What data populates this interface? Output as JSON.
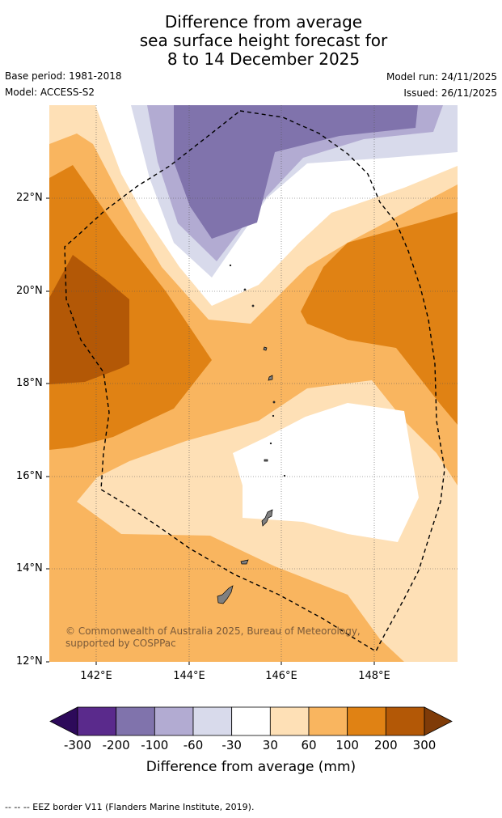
{
  "title": {
    "line1": "Difference from average",
    "line2": "sea surface height forecast for",
    "line3": "8 to 14 December 2025"
  },
  "info": {
    "base_period": "Base period: 1981-2018",
    "model": "Model: ACCESS-S2",
    "model_run": "Model run: 24/11/2025",
    "issued": "Issued: 26/11/2025"
  },
  "axes": {
    "lat_labels": [
      "22°N",
      "20°N",
      "18°N",
      "16°N",
      "14°N",
      "12°N"
    ],
    "lon_labels": [
      "142°E",
      "144°E",
      "146°E",
      "148°E"
    ]
  },
  "copyright": "© Commonwealth of Australia 2025, Bureau of Meteorology, supported by COSPPac",
  "colorbar": {
    "ticks": [
      "-300",
      "-200",
      "-100",
      "-60",
      "-30",
      "30",
      "60",
      "100",
      "200",
      "300"
    ],
    "colors": [
      "#2d0a5a",
      "#5a2a8c",
      "#8073ac",
      "#b2abd2",
      "#d8daeb",
      "#ffffff",
      "#fee0b6",
      "#f9b55f",
      "#e08214",
      "#b35806",
      "#7f3b08"
    ],
    "title": "Difference from average (mm)"
  },
  "footnote": "--  --  -- EEZ border V11 (Flanders Marine Institute, 2019).",
  "map": {
    "lat_range": [
      12,
      24
    ],
    "lon_range": [
      141,
      150
    ],
    "region_colors": {
      "n200_n100": "#8073ac",
      "n100_n60": "#b2abd2",
      "n60_n30": "#d8daeb",
      "p30_p60": "#fee0b6",
      "p60_p100": "#f9b55f",
      "p100_p200": "#e08214",
      "p200_p300": "#b35806"
    }
  }
}
